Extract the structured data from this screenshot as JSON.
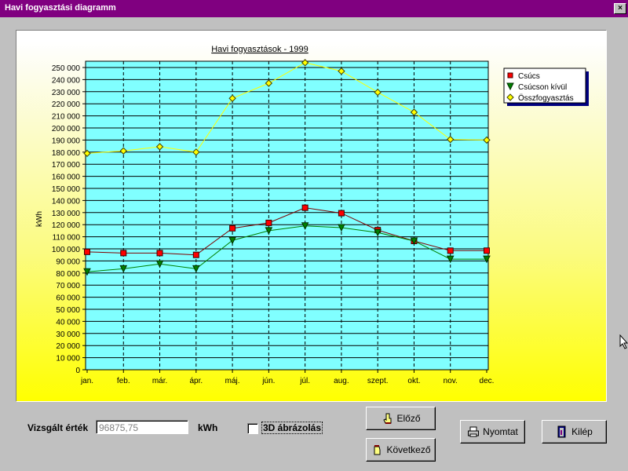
{
  "window": {
    "title": "Havi fogyasztási diagramm",
    "close_label": "×"
  },
  "chart_data": {
    "type": "line",
    "title": "Havi fogyasztások - 1999",
    "xlabel": "",
    "ylabel": "kWh",
    "ylim": [
      0,
      250000
    ],
    "ytick_step": 10000,
    "yticks_labels": [
      "0",
      "10 000",
      "20 000",
      "30 000",
      "40 000",
      "50 000",
      "60 000",
      "70 000",
      "80 000",
      "90 000",
      "100 000",
      "110 000",
      "120 000",
      "130 000",
      "140 000",
      "150 000",
      "160 000",
      "170 000",
      "180 000",
      "190 000",
      "200 000",
      "210 000",
      "220 000",
      "230 000",
      "240 000",
      "250 000"
    ],
    "categories": [
      "jan.",
      "feb.",
      "már.",
      "ápr.",
      "máj.",
      "jún.",
      "júl.",
      "aug.",
      "szept.",
      "okt.",
      "nov.",
      "dec."
    ],
    "legend_position": "top-right",
    "grid": true,
    "plot_background": "#80ffff",
    "series": [
      {
        "name": "Csúcs",
        "color": "#ff0000",
        "line_color": "#800000",
        "marker": "square",
        "values": [
          97500,
          96500,
          96500,
          95000,
          117000,
          121500,
          134000,
          129500,
          115500,
          106500,
          98500,
          98500
        ]
      },
      {
        "name": "Csúcson kívül",
        "color": "#008000",
        "line_color": "#008000",
        "marker": "triangle-down",
        "values": [
          81000,
          83500,
          87500,
          83500,
          107000,
          115000,
          119000,
          117500,
          113500,
          106500,
          91500,
          91500
        ]
      },
      {
        "name": "Összfogyasztás",
        "color": "#ffff00",
        "line_color": "#ffff00",
        "marker": "diamond",
        "values": [
          179000,
          181000,
          184500,
          180000,
          224500,
          237000,
          254000,
          247000,
          229500,
          213000,
          190500,
          190000
        ]
      }
    ]
  },
  "controls": {
    "examined_label": "Vizsgált érték",
    "examined_value": "96875,75",
    "unit_label": "kWh",
    "threed_label": "3D ábrázolás",
    "threed_checked": false,
    "prev_button": "Előző",
    "next_button": "Következő",
    "print_button": "Nyomtat",
    "exit_button": "Kilép"
  }
}
